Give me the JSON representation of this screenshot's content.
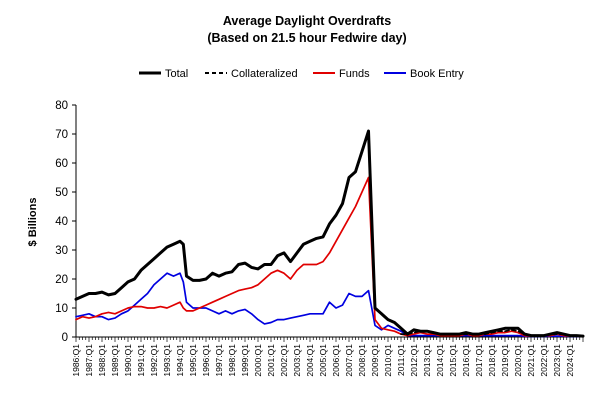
{
  "chart_data": {
    "type": "line",
    "title": "Average Daylight Overdrafts",
    "subtitle": "(Based on 21.5 hour Fedwire day)",
    "ylabel": "$ Billions",
    "xlabel": "",
    "ylim": [
      0,
      80
    ],
    "yticks": [
      0,
      10,
      20,
      30,
      40,
      50,
      60,
      70,
      80
    ],
    "legend_position": "top-center",
    "grid": false,
    "x_start": "1986:Q1",
    "x_end": "2025:Q1",
    "x_ticks": [
      "1986:Q1",
      "1987:Q1",
      "1988:Q1",
      "1989:Q1",
      "1990:Q1",
      "1991:Q1",
      "1992:Q1",
      "1993:Q1",
      "1994:Q1",
      "1995:Q1",
      "1996:Q1",
      "1997:Q1",
      "1998:Q1",
      "1999:Q1",
      "2000:Q1",
      "2001:Q1",
      "2002:Q1",
      "2003:Q1",
      "2004:Q1",
      "2005:Q1",
      "2006:Q1",
      "2007:Q1",
      "2008:Q1",
      "2009:Q1",
      "2010:Q1",
      "2011:Q1",
      "2012:Q1",
      "2013:Q1",
      "2014:Q1",
      "2015:Q1",
      "2016:Q1",
      "2017:Q1",
      "2018:Q1",
      "2019:Q1",
      "2020:Q1",
      "2021:Q1",
      "2022:Q1",
      "2023:Q1",
      "2024:Q1"
    ],
    "series": [
      {
        "name": "Total",
        "color": "#000000",
        "dash": "solid",
        "points": [
          [
            "1986:Q1",
            13
          ],
          [
            "1986:Q3",
            14
          ],
          [
            "1987:Q1",
            15
          ],
          [
            "1987:Q3",
            15
          ],
          [
            "1988:Q1",
            15.5
          ],
          [
            "1988:Q3",
            14.5
          ],
          [
            "1989:Q1",
            15
          ],
          [
            "1989:Q3",
            17
          ],
          [
            "1990:Q1",
            19
          ],
          [
            "1990:Q3",
            20
          ],
          [
            "1991:Q1",
            23
          ],
          [
            "1991:Q3",
            25
          ],
          [
            "1992:Q1",
            27
          ],
          [
            "1992:Q3",
            29
          ],
          [
            "1993:Q1",
            31
          ],
          [
            "1993:Q3",
            32
          ],
          [
            "1994:Q1",
            33
          ],
          [
            "1994:Q2",
            32
          ],
          [
            "1994:Q3",
            21
          ],
          [
            "1995:Q1",
            19.5
          ],
          [
            "1995:Q3",
            19.5
          ],
          [
            "1996:Q1",
            20
          ],
          [
            "1996:Q3",
            22
          ],
          [
            "1997:Q1",
            21
          ],
          [
            "1997:Q3",
            22
          ],
          [
            "1998:Q1",
            22.5
          ],
          [
            "1998:Q3",
            25
          ],
          [
            "1999:Q1",
            25.5
          ],
          [
            "1999:Q3",
            24
          ],
          [
            "2000:Q1",
            23.5
          ],
          [
            "2000:Q3",
            25
          ],
          [
            "2001:Q1",
            25
          ],
          [
            "2001:Q3",
            28
          ],
          [
            "2002:Q1",
            29
          ],
          [
            "2002:Q3",
            26
          ],
          [
            "2003:Q1",
            29
          ],
          [
            "2003:Q3",
            32
          ],
          [
            "2004:Q1",
            33
          ],
          [
            "2004:Q3",
            34
          ],
          [
            "2005:Q1",
            34.5
          ],
          [
            "2005:Q3",
            39
          ],
          [
            "2006:Q1",
            42
          ],
          [
            "2006:Q3",
            46
          ],
          [
            "2007:Q1",
            55
          ],
          [
            "2007:Q3",
            57
          ],
          [
            "2008:Q1",
            64
          ],
          [
            "2008:Q3",
            71
          ],
          [
            "2009:Q1",
            10
          ],
          [
            "2009:Q3",
            8
          ],
          [
            "2010:Q1",
            6
          ],
          [
            "2010:Q3",
            5
          ],
          [
            "2011:Q1",
            3
          ],
          [
            "2011:Q3",
            1
          ],
          [
            "2012:Q1",
            2.5
          ],
          [
            "2012:Q3",
            2
          ],
          [
            "2013:Q1",
            2
          ],
          [
            "2013:Q3",
            1.5
          ],
          [
            "2014:Q1",
            1
          ],
          [
            "2014:Q3",
            1
          ],
          [
            "2015:Q1",
            1
          ],
          [
            "2015:Q3",
            1
          ],
          [
            "2016:Q1",
            1.5
          ],
          [
            "2016:Q3",
            1
          ],
          [
            "2017:Q1",
            1
          ],
          [
            "2017:Q3",
            1.5
          ],
          [
            "2018:Q1",
            2
          ],
          [
            "2018:Q3",
            2.5
          ],
          [
            "2019:Q1",
            3
          ],
          [
            "2019:Q3",
            3
          ],
          [
            "2020:Q1",
            3
          ],
          [
            "2020:Q3",
            1
          ],
          [
            "2021:Q1",
            0.5
          ],
          [
            "2021:Q3",
            0.5
          ],
          [
            "2022:Q1",
            0.5
          ],
          [
            "2022:Q3",
            1
          ],
          [
            "2023:Q1",
            1.5
          ],
          [
            "2023:Q3",
            1
          ],
          [
            "2024:Q1",
            0.5
          ],
          [
            "2024:Q3",
            0.5
          ],
          [
            "2025:Q1",
            0.3
          ]
        ]
      },
      {
        "name": "Collateralized",
        "color": "#000000",
        "dash": "dashed",
        "points": [
          [
            "2011:Q1",
            1
          ],
          [
            "2011:Q3",
            1
          ],
          [
            "2012:Q1",
            1.5
          ],
          [
            "2012:Q3",
            2
          ],
          [
            "2013:Q1",
            2
          ],
          [
            "2013:Q3",
            1.5
          ],
          [
            "2014:Q1",
            1
          ],
          [
            "2014:Q3",
            1
          ],
          [
            "2015:Q1",
            1
          ],
          [
            "2015:Q3",
            1
          ],
          [
            "2016:Q1",
            1
          ],
          [
            "2016:Q3",
            1
          ],
          [
            "2017:Q1",
            1
          ],
          [
            "2017:Q3",
            1
          ],
          [
            "2018:Q1",
            1.5
          ],
          [
            "2018:Q3",
            2
          ],
          [
            "2019:Q1",
            2
          ],
          [
            "2019:Q3",
            2.5
          ],
          [
            "2020:Q1",
            2
          ],
          [
            "2020:Q3",
            1
          ],
          [
            "2021:Q1",
            0.5
          ],
          [
            "2021:Q3",
            0.5
          ],
          [
            "2022:Q1",
            0.5
          ],
          [
            "2022:Q3",
            1
          ],
          [
            "2023:Q1",
            1
          ],
          [
            "2023:Q3",
            1
          ],
          [
            "2024:Q1",
            0.5
          ],
          [
            "2024:Q3",
            0.5
          ],
          [
            "2025:Q1",
            0.3
          ]
        ]
      },
      {
        "name": "Funds",
        "color": "#e00000",
        "dash": "solid",
        "points": [
          [
            "1986:Q1",
            6
          ],
          [
            "1986:Q3",
            7
          ],
          [
            "1987:Q1",
            6.5
          ],
          [
            "1987:Q3",
            7
          ],
          [
            "1988:Q1",
            8
          ],
          [
            "1988:Q3",
            8.5
          ],
          [
            "1989:Q1",
            8
          ],
          [
            "1989:Q3",
            9
          ],
          [
            "1990:Q1",
            10
          ],
          [
            "1990:Q3",
            10.5
          ],
          [
            "1991:Q1",
            10.5
          ],
          [
            "1991:Q3",
            10
          ],
          [
            "1992:Q1",
            10
          ],
          [
            "1992:Q3",
            10.5
          ],
          [
            "1993:Q1",
            10
          ],
          [
            "1993:Q3",
            11
          ],
          [
            "1994:Q1",
            12
          ],
          [
            "1994:Q2",
            10
          ],
          [
            "1994:Q3",
            9
          ],
          [
            "1995:Q1",
            9
          ],
          [
            "1995:Q3",
            10
          ],
          [
            "1996:Q1",
            11
          ],
          [
            "1996:Q3",
            12
          ],
          [
            "1997:Q1",
            13
          ],
          [
            "1997:Q3",
            14
          ],
          [
            "1998:Q1",
            15
          ],
          [
            "1998:Q3",
            16
          ],
          [
            "1999:Q1",
            16.5
          ],
          [
            "1999:Q3",
            17
          ],
          [
            "2000:Q1",
            18
          ],
          [
            "2000:Q3",
            20
          ],
          [
            "2001:Q1",
            22
          ],
          [
            "2001:Q3",
            23
          ],
          [
            "2002:Q1",
            22
          ],
          [
            "2002:Q3",
            20
          ],
          [
            "2003:Q1",
            23
          ],
          [
            "2003:Q3",
            25
          ],
          [
            "2004:Q1",
            25
          ],
          [
            "2004:Q3",
            25
          ],
          [
            "2005:Q1",
            26
          ],
          [
            "2005:Q3",
            29
          ],
          [
            "2006:Q1",
            33
          ],
          [
            "2006:Q3",
            37
          ],
          [
            "2007:Q1",
            41
          ],
          [
            "2007:Q3",
            45
          ],
          [
            "2008:Q1",
            50
          ],
          [
            "2008:Q3",
            55
          ],
          [
            "2009:Q1",
            6
          ],
          [
            "2009:Q3",
            3
          ],
          [
            "2010:Q1",
            2.5
          ],
          [
            "2010:Q3",
            2
          ],
          [
            "2011:Q1",
            1
          ],
          [
            "2011:Q3",
            0.5
          ],
          [
            "2012:Q1",
            1
          ],
          [
            "2012:Q3",
            1.5
          ],
          [
            "2013:Q1",
            1
          ],
          [
            "2013:Q3",
            1
          ],
          [
            "2014:Q1",
            0.5
          ],
          [
            "2014:Q3",
            0.5
          ],
          [
            "2015:Q1",
            0.5
          ],
          [
            "2015:Q3",
            0.5
          ],
          [
            "2016:Q1",
            1
          ],
          [
            "2016:Q3",
            0.5
          ],
          [
            "2017:Q1",
            0.5
          ],
          [
            "2017:Q3",
            1
          ],
          [
            "2018:Q1",
            1
          ],
          [
            "2018:Q3",
            1.5
          ],
          [
            "2019:Q1",
            1.5
          ],
          [
            "2019:Q3",
            2
          ],
          [
            "2020:Q1",
            1.5
          ],
          [
            "2020:Q3",
            0.5
          ],
          [
            "2021:Q1",
            0.3
          ],
          [
            "2021:Q3",
            0.3
          ],
          [
            "2022:Q1",
            0.5
          ],
          [
            "2022:Q3",
            0.5
          ],
          [
            "2023:Q1",
            1
          ],
          [
            "2023:Q3",
            0.5
          ],
          [
            "2024:Q1",
            0.3
          ],
          [
            "2024:Q3",
            0.3
          ],
          [
            "2025:Q1",
            0.2
          ]
        ]
      },
      {
        "name": "Book Entry",
        "color": "#0000e0",
        "dash": "solid",
        "points": [
          [
            "1986:Q1",
            7
          ],
          [
            "1986:Q3",
            7.5
          ],
          [
            "1987:Q1",
            8
          ],
          [
            "1987:Q3",
            7
          ],
          [
            "1988:Q1",
            7
          ],
          [
            "1988:Q3",
            6
          ],
          [
            "1989:Q1",
            6.5
          ],
          [
            "1989:Q3",
            8
          ],
          [
            "1990:Q1",
            9
          ],
          [
            "1990:Q3",
            11
          ],
          [
            "1991:Q1",
            13
          ],
          [
            "1991:Q3",
            15
          ],
          [
            "1992:Q1",
            18
          ],
          [
            "1992:Q3",
            20
          ],
          [
            "1993:Q1",
            22
          ],
          [
            "1993:Q3",
            21
          ],
          [
            "1994:Q1",
            22
          ],
          [
            "1994:Q2",
            19
          ],
          [
            "1994:Q3",
            12
          ],
          [
            "1995:Q1",
            10
          ],
          [
            "1995:Q3",
            10
          ],
          [
            "1996:Q1",
            10
          ],
          [
            "1996:Q3",
            9
          ],
          [
            "1997:Q1",
            8
          ],
          [
            "1997:Q3",
            9
          ],
          [
            "1998:Q1",
            8
          ],
          [
            "1998:Q3",
            9
          ],
          [
            "1999:Q1",
            9.5
          ],
          [
            "1999:Q3",
            8
          ],
          [
            "2000:Q1",
            6
          ],
          [
            "2000:Q3",
            4.5
          ],
          [
            "2001:Q1",
            5
          ],
          [
            "2001:Q3",
            6
          ],
          [
            "2002:Q1",
            6
          ],
          [
            "2002:Q3",
            6.5
          ],
          [
            "2003:Q1",
            7
          ],
          [
            "2003:Q3",
            7.5
          ],
          [
            "2004:Q1",
            8
          ],
          [
            "2004:Q3",
            8
          ],
          [
            "2005:Q1",
            8
          ],
          [
            "2005:Q3",
            12
          ],
          [
            "2006:Q1",
            10
          ],
          [
            "2006:Q3",
            11
          ],
          [
            "2007:Q1",
            15
          ],
          [
            "2007:Q3",
            14
          ],
          [
            "2008:Q1",
            14
          ],
          [
            "2008:Q3",
            16
          ],
          [
            "2009:Q1",
            4
          ],
          [
            "2009:Q3",
            2.5
          ],
          [
            "2010:Q1",
            4
          ],
          [
            "2010:Q3",
            3
          ],
          [
            "2011:Q1",
            2
          ],
          [
            "2011:Q3",
            0.5
          ],
          [
            "2012:Q1",
            0.5
          ],
          [
            "2012:Q3",
            0.5
          ],
          [
            "2013:Q1",
            0.5
          ],
          [
            "2013:Q3",
            0.5
          ],
          [
            "2014:Q1",
            0.5
          ],
          [
            "2014:Q3",
            0.5
          ],
          [
            "2015:Q1",
            0.5
          ],
          [
            "2015:Q3",
            0.5
          ],
          [
            "2016:Q1",
            0.5
          ],
          [
            "2016:Q3",
            0.5
          ],
          [
            "2017:Q1",
            0.5
          ],
          [
            "2017:Q3",
            0.5
          ],
          [
            "2018:Q1",
            0.5
          ],
          [
            "2018:Q3",
            0.5
          ],
          [
            "2019:Q1",
            0.5
          ],
          [
            "2019:Q3",
            0.5
          ],
          [
            "2020:Q1",
            0.5
          ],
          [
            "2020:Q3",
            0.3
          ],
          [
            "2021:Q1",
            0.2
          ],
          [
            "2021:Q3",
            0.2
          ],
          [
            "2022:Q1",
            0.2
          ],
          [
            "2022:Q3",
            0.3
          ],
          [
            "2023:Q1",
            0.3
          ],
          [
            "2023:Q3",
            0.3
          ],
          [
            "2024:Q1",
            0.2
          ],
          [
            "2024:Q3",
            0.2
          ],
          [
            "2025:Q1",
            0.1
          ]
        ]
      }
    ]
  }
}
